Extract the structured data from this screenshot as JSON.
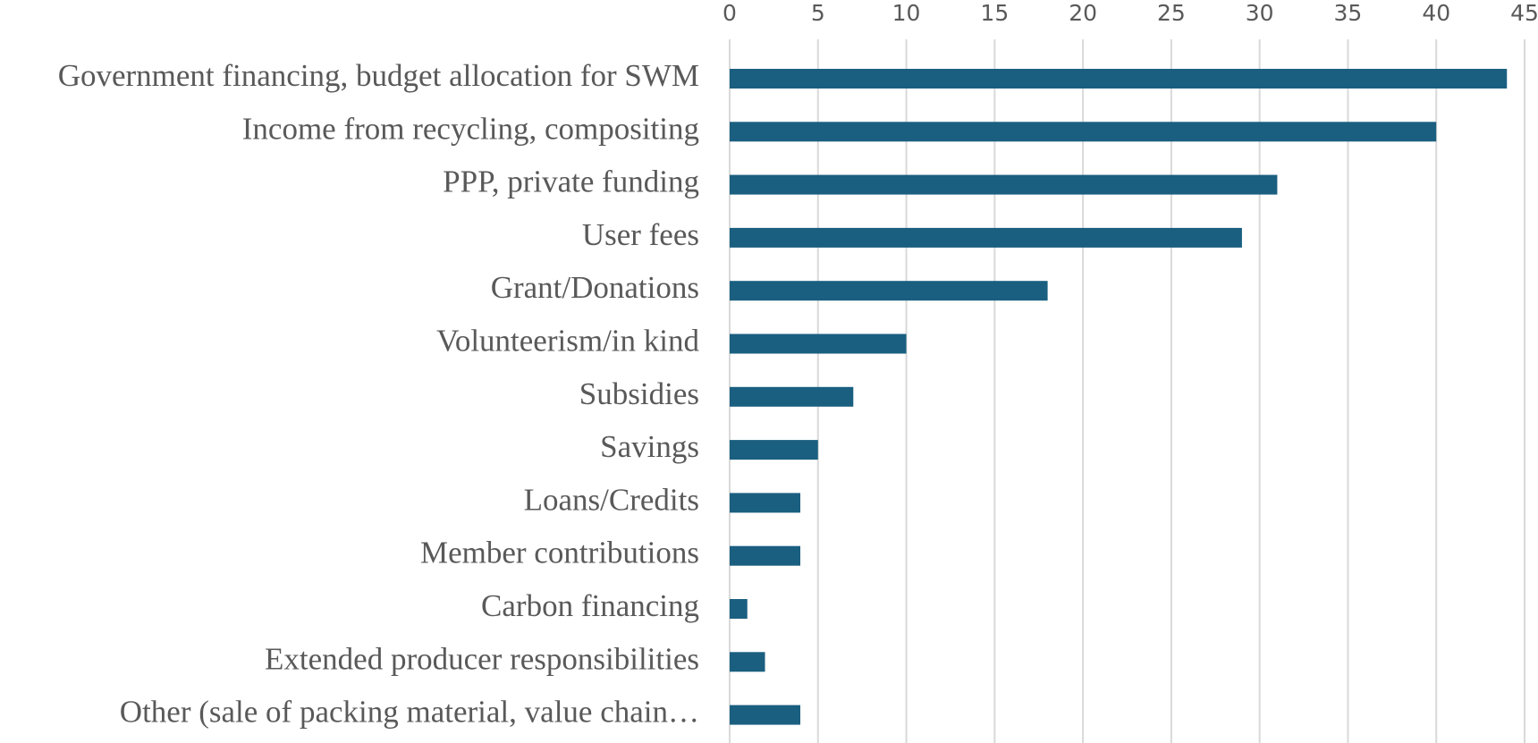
{
  "chart_data": {
    "type": "hbar",
    "categories": [
      "Government financing, budget allocation for SWM",
      "Income from recycling, compositing",
      "PPP, private funding",
      "User fees",
      "Grant/Donations",
      "Volunteerism/in kind",
      "Subsidies",
      "Savings",
      "Loans/Credits",
      "Member contributions",
      "Carbon financing",
      "Extended producer responsibilities",
      "Other (sale of packing material, value chain…"
    ],
    "values": [
      44,
      40,
      31,
      29,
      18,
      10,
      7,
      5,
      4,
      4,
      1,
      2,
      4
    ],
    "color": "#1a5f80",
    "xlim": [
      0,
      45
    ],
    "xticks": [
      0,
      5,
      10,
      15,
      20,
      25,
      30,
      35,
      40,
      45
    ],
    "grid": true
  }
}
